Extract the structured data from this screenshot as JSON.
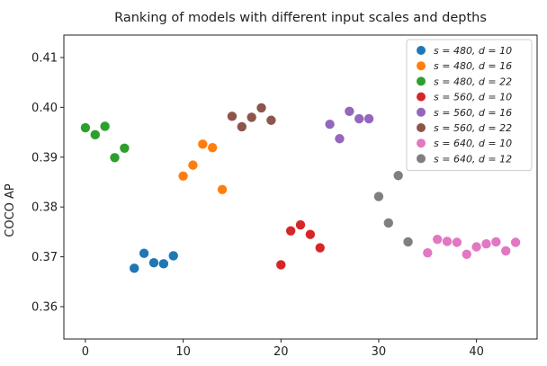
{
  "chart_data": {
    "type": "scatter",
    "title": "Ranking of models with different input scales and depths",
    "xlabel": "",
    "ylabel": "COCO AP",
    "xlim": [
      -2.2,
      46.2
    ],
    "ylim": [
      0.3535,
      0.4145
    ],
    "xticks": [
      0,
      10,
      20,
      30,
      40
    ],
    "yticks": [
      0.36,
      0.37,
      0.38,
      0.39,
      0.4,
      0.41
    ],
    "ytick_labels": [
      "0.36",
      "0.37",
      "0.38",
      "0.39",
      "0.40",
      "0.41"
    ],
    "grid": false,
    "legend_position": "top-right",
    "series": [
      {
        "name": "s = 480, d = 10",
        "color": "#1f77b4",
        "x": [
          5,
          6,
          7,
          8,
          9
        ],
        "y": [
          0.3677,
          0.3707,
          0.3688,
          0.3686,
          0.3702
        ]
      },
      {
        "name": "s = 480, d = 16",
        "color": "#ff7f0e",
        "x": [
          10,
          11,
          12,
          13,
          14
        ],
        "y": [
          0.3862,
          0.3884,
          0.3926,
          0.3919,
          0.3835
        ]
      },
      {
        "name": "s = 480, d = 22",
        "color": "#2ca02c",
        "x": [
          0,
          1,
          2,
          3,
          4
        ],
        "y": [
          0.3959,
          0.3945,
          0.3962,
          0.3899,
          0.3918
        ]
      },
      {
        "name": "s = 560, d = 10",
        "color": "#d62728",
        "x": [
          20,
          21,
          22,
          23,
          24
        ],
        "y": [
          0.3684,
          0.3752,
          0.3764,
          0.3745,
          0.3718
        ]
      },
      {
        "name": "s = 560, d = 16",
        "color": "#9467bd",
        "x": [
          25,
          26,
          27,
          28,
          29
        ],
        "y": [
          0.3966,
          0.3937,
          0.3992,
          0.3977,
          0.3977
        ]
      },
      {
        "name": "s = 560, d = 22",
        "color": "#8c564b",
        "x": [
          15,
          16,
          17,
          18,
          19
        ],
        "y": [
          0.3982,
          0.3961,
          0.398,
          0.3999,
          0.3974
        ]
      },
      {
        "name": "s = 640, d = 10",
        "color": "#e377c2",
        "x": [
          35,
          36,
          37,
          38,
          39,
          40,
          41,
          42,
          43,
          44
        ],
        "y": [
          0.3708,
          0.3735,
          0.3731,
          0.3729,
          0.3705,
          0.372,
          0.3726,
          0.373,
          0.3712,
          0.3729
        ]
      },
      {
        "name": "s = 640, d = 12",
        "color": "#7f7f7f",
        "x": [
          30,
          31,
          32,
          33
        ],
        "y": [
          0.3821,
          0.3768,
          0.3863,
          0.373
        ]
      }
    ]
  }
}
